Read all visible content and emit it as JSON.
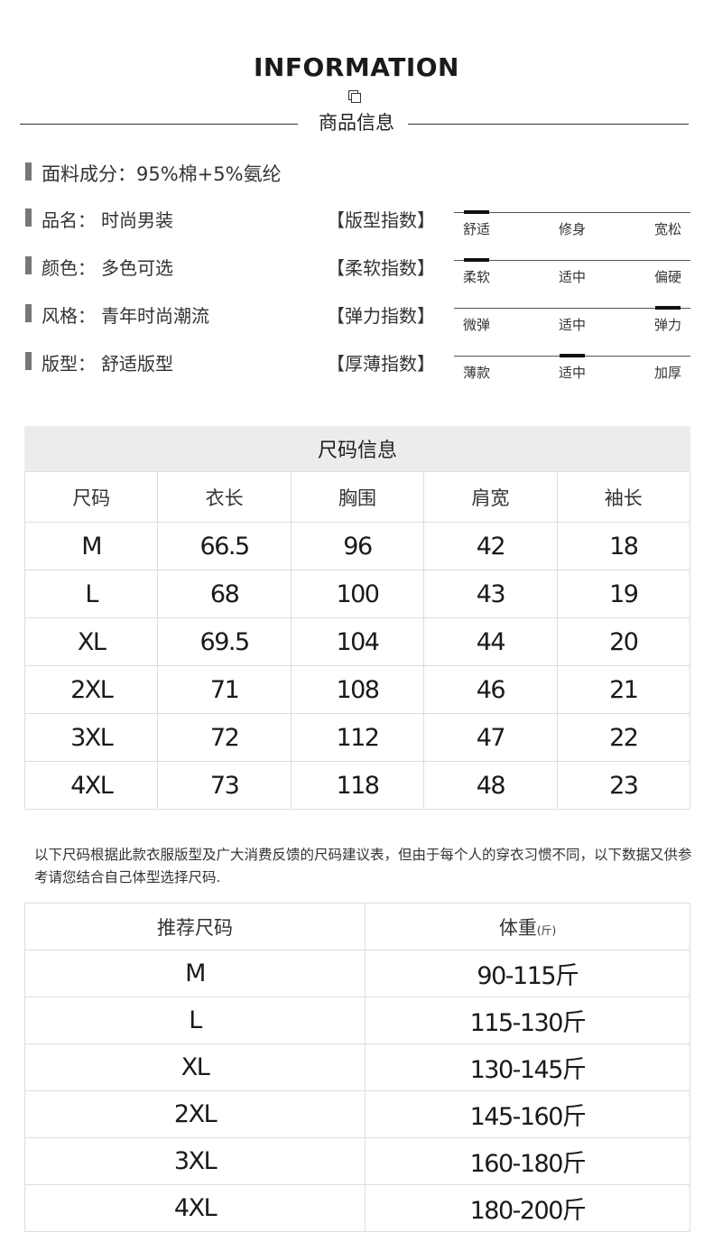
{
  "header": {
    "title": "INFORMATION",
    "subtitle": "商品信息"
  },
  "fabric": "面料成分：95%棉+5%氨纶",
  "attributes": [
    {
      "label": "品名：",
      "value": "时尚男装",
      "index_name": "【版型指数】",
      "scale": [
        "舒适",
        "修身",
        "宽松"
      ],
      "selected": 0
    },
    {
      "label": "颜色：",
      "value": "多色可选",
      "index_name": "【柔软指数】",
      "scale": [
        "柔软",
        "适中",
        "偏硬"
      ],
      "selected": 0
    },
    {
      "label": "风格：",
      "value": "青年时尚潮流",
      "index_name": "【弹力指数】",
      "scale": [
        "微弹",
        "适中",
        "弹力"
      ],
      "selected": 2
    },
    {
      "label": "版型：",
      "value": "舒适版型",
      "index_name": "【厚薄指数】",
      "scale": [
        "薄款",
        "适中",
        "加厚"
      ],
      "selected": 1
    }
  ],
  "size_table": {
    "title": "尺码信息",
    "columns": [
      "尺码",
      "衣长",
      "胸围",
      "肩宽",
      "袖长"
    ],
    "rows": [
      [
        "M",
        66.5,
        96,
        42,
        18
      ],
      [
        "L",
        68,
        100,
        43,
        19
      ],
      [
        "XL",
        69.5,
        104,
        44,
        20
      ],
      [
        "2XL",
        71,
        108,
        46,
        21
      ],
      [
        "3XL",
        72,
        112,
        47,
        22
      ],
      [
        "4XL",
        73,
        118,
        48,
        23
      ]
    ]
  },
  "note": "以下尺码根据此款衣服版型及广大消费反馈的尺码建议表，但由于每个人的穿衣习惯不同，以下数据又供参考请您结合自己体型选择尺码.",
  "weight_table": {
    "columns": [
      "推荐尺码",
      "体重"
    ],
    "unit": "(斤)",
    "rows": [
      [
        "M",
        "90-115斤"
      ],
      [
        "L",
        "115-130斤"
      ],
      [
        "XL",
        "130-145斤"
      ],
      [
        "2XL",
        "145-160斤"
      ],
      [
        "3XL",
        "160-180斤"
      ],
      [
        "4XL",
        "180-200斤"
      ]
    ]
  }
}
